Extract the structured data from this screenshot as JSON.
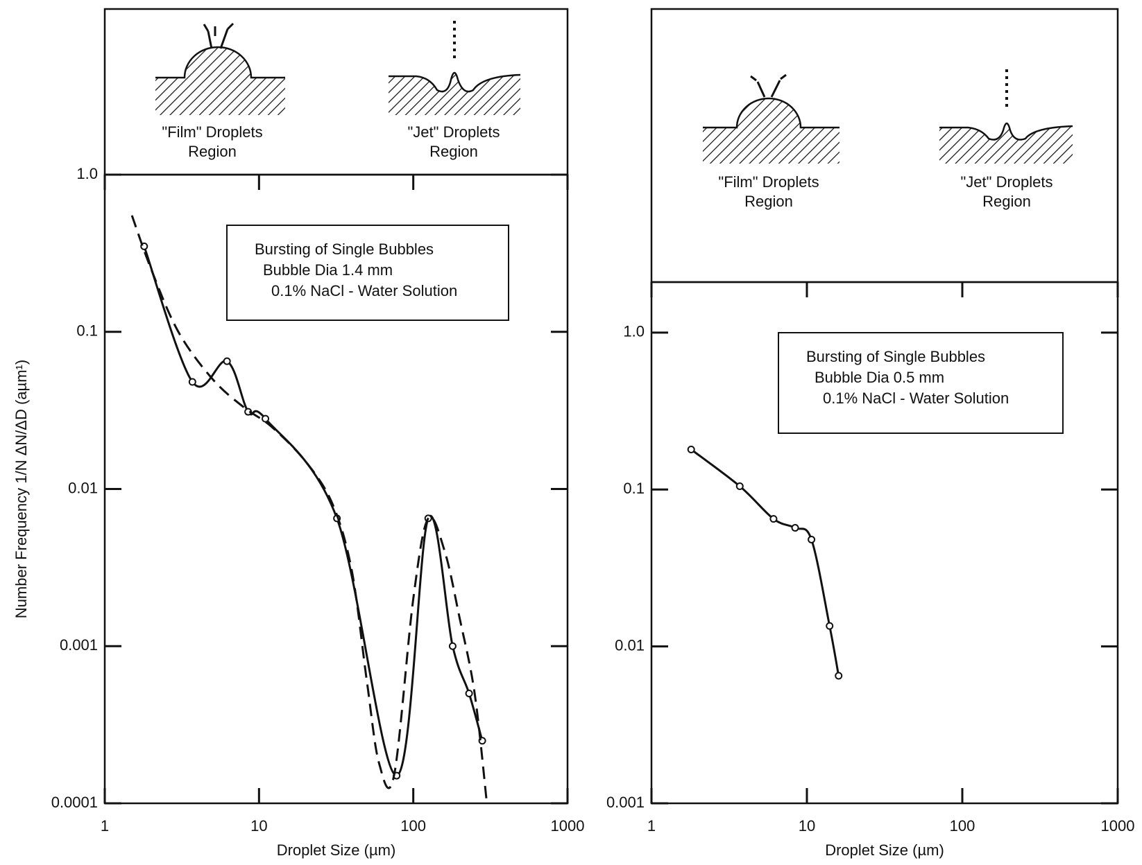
{
  "chart_data": [
    {
      "type": "line",
      "log_x": true,
      "log_y": true,
      "x_label": "Droplet Size (µm)",
      "y_label": "Number Frequency 1/N ΔN/ΔD (aµm¹)",
      "header_labels": [
        "\"Film\" Droplets",
        "Region",
        "\"Jet\" Droplets",
        "Region"
      ],
      "annotation": [
        "Bursting of Single Bubbles",
        "Bubble Dia 1.4 mm",
        "0.1% NaCl - Water Solution"
      ],
      "xlim": [
        1,
        1000
      ],
      "xticks": [
        1,
        10,
        100,
        1000
      ],
      "ylim": [
        0.0001,
        1
      ],
      "yticks": [
        {
          "value": 1,
          "label": "1.0"
        },
        0.1,
        0.01,
        0.001,
        0.0001
      ],
      "series": [
        {
          "style": "solid",
          "markers": true,
          "color": "#111",
          "x": [
            1.8,
            3.7,
            6.2,
            8.5,
            11,
            32,
            78,
            125,
            180,
            230,
            280
          ],
          "values": [
            0.35,
            0.048,
            0.065,
            0.031,
            0.028,
            0.0065,
            0.00015,
            0.0065,
            0.001,
            0.0005,
            0.00025
          ]
        },
        {
          "style": "dashed",
          "markers": false,
          "color": "#111",
          "x": [
            1.5,
            2,
            3,
            5,
            8,
            12,
            20,
            30,
            40,
            50,
            60,
            75,
            100,
            125,
            160,
            200,
            250,
            300
          ],
          "values": [
            0.55,
            0.25,
            0.1,
            0.05,
            0.033,
            0.025,
            0.015,
            0.008,
            0.003,
            0.0006,
            0.00018,
            0.00015,
            0.002,
            0.0065,
            0.004,
            0.0015,
            0.0005,
            0.0001
          ]
        }
      ]
    },
    {
      "type": "line",
      "log_x": true,
      "log_y": true,
      "x_label": "Droplet Size (µm)",
      "header_labels": [
        "\"Film\" Droplets",
        "Region",
        "\"Jet\" Droplets",
        "Region"
      ],
      "annotation": [
        "Bursting of Single Bubbles",
        "Bubble Dia 0.5 mm",
        "0.1% NaCl - Water Solution"
      ],
      "xlim": [
        1,
        1000
      ],
      "xticks": [
        1,
        10,
        100,
        1000
      ],
      "ylim": [
        0.001,
        2.1
      ],
      "yticks": [
        {
          "value": 1,
          "label": "1.0"
        },
        0.1,
        0.01,
        0.001
      ],
      "series": [
        {
          "style": "solid",
          "markers": true,
          "color": "#111",
          "x": [
            1.8,
            3.7,
            6.1,
            8.4,
            10.7,
            14,
            16
          ],
          "values": [
            0.18,
            0.105,
            0.065,
            0.057,
            0.048,
            0.0135,
            0.0065
          ]
        }
      ]
    }
  ]
}
